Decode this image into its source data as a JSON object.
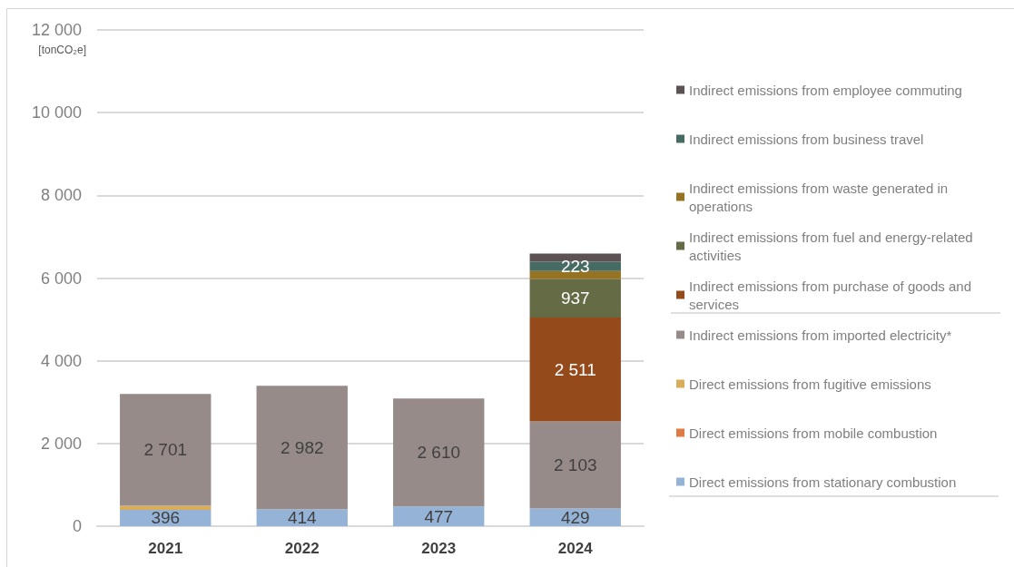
{
  "chart_data": {
    "type": "bar",
    "stacked": true,
    "ylabel": "[tonCO₂e]",
    "categories": [
      "2021",
      "2022",
      "2023",
      "2024"
    ],
    "ylim": [
      0,
      12000
    ],
    "yticks": [
      0,
      {
        "value": 2000,
        "label": "2 000"
      },
      {
        "value": 4000,
        "label": "4 000"
      },
      {
        "value": 6000,
        "label": "6 000"
      },
      {
        "value": 8000,
        "label": "8 000"
      },
      {
        "value": 10000,
        "label": "10 000"
      },
      {
        "value": 12000,
        "label": "12 000"
      }
    ],
    "grid": "y",
    "legend": "right",
    "series": [
      {
        "name": "Direct emissions from stationary combustion",
        "color": "#95b3d7",
        "values": [
          396,
          414,
          477,
          429
        ],
        "value_labels": [
          "396",
          "414",
          "477",
          "429"
        ]
      },
      {
        "name": "Direct emissions from mobile combustion",
        "color": "#e07b45",
        "values": [
          null,
          null,
          null,
          null
        ]
      },
      {
        "name": "Direct emissions from fugitive emissions",
        "color": "#d9ad5a",
        "values": [
          100,
          null,
          null,
          null
        ]
      },
      {
        "name": "Indirect emissions from imported electricity*",
        "color": "#968b89",
        "values": [
          2701,
          2982,
          2610,
          2103
        ],
        "value_labels": [
          "2 701",
          "2 982",
          "2 610",
          "2 103"
        ]
      },
      {
        "name": "Indirect emissions from purchase of goods and services",
        "color": "#954a1c",
        "values": [
          null,
          null,
          null,
          2511
        ],
        "value_labels": [
          null,
          null,
          null,
          "2 511"
        ]
      },
      {
        "name": "Indirect emissions from fuel and energy-related activities",
        "color": "#656b45",
        "values": [
          null,
          null,
          null,
          937
        ],
        "value_labels": [
          null,
          null,
          null,
          "937"
        ]
      },
      {
        "name": "Indirect emissions from waste generated in operations",
        "color": "#967322",
        "values": [
          null,
          null,
          null,
          190
        ]
      },
      {
        "name": "Indirect emissions from business travel",
        "color": "#456b63",
        "values": [
          null,
          null,
          null,
          223
        ],
        "value_labels": [
          null,
          null,
          null,
          "223"
        ]
      },
      {
        "name": "Indirect emissions from employee commuting",
        "color": "#5c5254",
        "values": [
          null,
          null,
          null,
          200
        ]
      }
    ]
  }
}
